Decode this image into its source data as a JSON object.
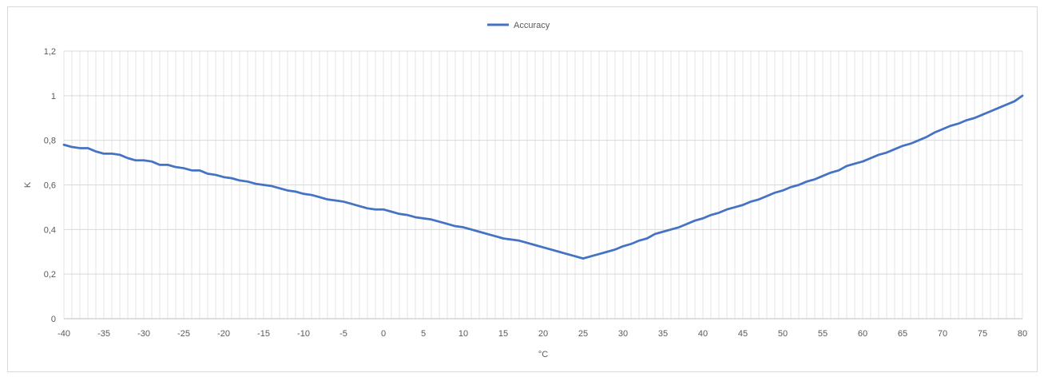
{
  "chart_data": {
    "type": "line",
    "title": "",
    "xlabel": "°C",
    "ylabel": "K",
    "xlim": [
      -40,
      80
    ],
    "ylim": [
      0,
      1.2
    ],
    "x_ticks": [
      "-40",
      "-35",
      "-30",
      "-25",
      "-20",
      "-15",
      "-10",
      "-5",
      "0",
      "5",
      "10",
      "15",
      "20",
      "25",
      "30",
      "35",
      "40",
      "45",
      "50",
      "55",
      "60",
      "65",
      "70",
      "75",
      "80"
    ],
    "y_ticks": [
      "0",
      "0,2",
      "0,4",
      "0,6",
      "0,8",
      "1",
      "1,2"
    ],
    "grid": true,
    "legend_position": "top-center",
    "series": [
      {
        "name": "Accuracy",
        "color": "#4472c4",
        "x": [
          -40,
          -39,
          -38,
          -37,
          -36,
          -35,
          -34,
          -33,
          -32,
          -31,
          -30,
          -29,
          -28,
          -27,
          -26,
          -25,
          -24,
          -23,
          -22,
          -21,
          -20,
          -19,
          -18,
          -17,
          -16,
          -15,
          -14,
          -13,
          -12,
          -11,
          -10,
          -9,
          -8,
          -7,
          -6,
          -5,
          -4,
          -3,
          -2,
          -1,
          0,
          1,
          2,
          3,
          4,
          5,
          6,
          7,
          8,
          9,
          10,
          11,
          12,
          13,
          14,
          15,
          16,
          17,
          18,
          19,
          20,
          21,
          22,
          23,
          24,
          25,
          26,
          27,
          28,
          29,
          30,
          31,
          32,
          33,
          34,
          35,
          36,
          37,
          38,
          39,
          40,
          41,
          42,
          43,
          44,
          45,
          46,
          47,
          48,
          49,
          50,
          51,
          52,
          53,
          54,
          55,
          56,
          57,
          58,
          59,
          60,
          61,
          62,
          63,
          64,
          65,
          66,
          67,
          68,
          69,
          70,
          71,
          72,
          73,
          74,
          75,
          76,
          77,
          78,
          79,
          80
        ],
        "y": [
          0.78,
          0.77,
          0.765,
          0.765,
          0.75,
          0.74,
          0.74,
          0.735,
          0.72,
          0.71,
          0.71,
          0.705,
          0.69,
          0.69,
          0.68,
          0.675,
          0.665,
          0.665,
          0.65,
          0.645,
          0.635,
          0.63,
          0.62,
          0.615,
          0.605,
          0.6,
          0.595,
          0.585,
          0.575,
          0.57,
          0.56,
          0.555,
          0.545,
          0.535,
          0.53,
          0.525,
          0.515,
          0.505,
          0.495,
          0.49,
          0.49,
          0.48,
          0.47,
          0.465,
          0.455,
          0.45,
          0.445,
          0.435,
          0.425,
          0.415,
          0.41,
          0.4,
          0.39,
          0.38,
          0.37,
          0.36,
          0.355,
          0.35,
          0.34,
          0.33,
          0.32,
          0.31,
          0.3,
          0.29,
          0.28,
          0.27,
          0.28,
          0.29,
          0.3,
          0.31,
          0.325,
          0.335,
          0.35,
          0.36,
          0.38,
          0.39,
          0.4,
          0.41,
          0.425,
          0.44,
          0.45,
          0.465,
          0.475,
          0.49,
          0.5,
          0.51,
          0.525,
          0.535,
          0.55,
          0.565,
          0.575,
          0.59,
          0.6,
          0.615,
          0.625,
          0.64,
          0.655,
          0.665,
          0.685,
          0.695,
          0.705,
          0.72,
          0.735,
          0.745,
          0.76,
          0.775,
          0.785,
          0.8,
          0.815,
          0.835,
          0.85,
          0.865,
          0.875,
          0.89,
          0.9,
          0.915,
          0.93,
          0.945,
          0.96,
          0.975,
          1.0
        ]
      }
    ]
  }
}
